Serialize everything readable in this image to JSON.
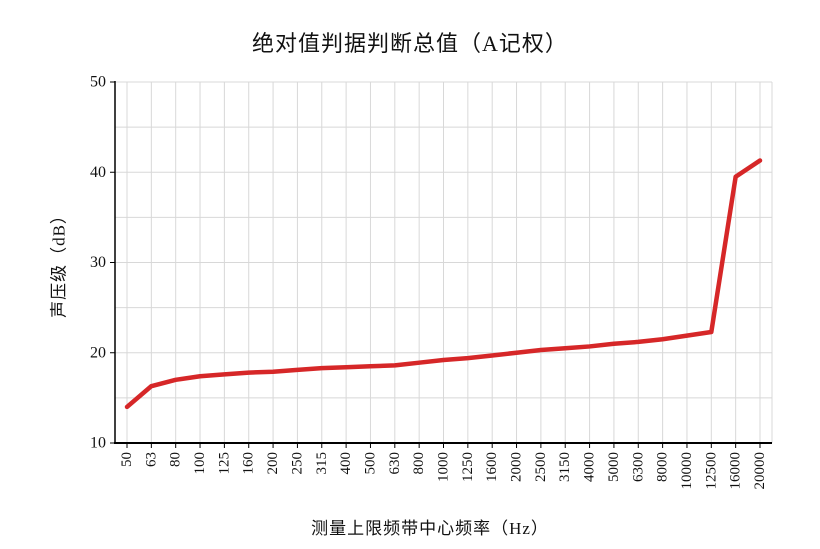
{
  "chart_data": {
    "type": "line",
    "title": "绝对值判据判断总值（A记权）",
    "xlabel": "测量上限频带中心频率（Hz）",
    "ylabel": "声压级（dB）",
    "categories": [
      "50",
      "63",
      "80",
      "100",
      "125",
      "160",
      "200",
      "250",
      "315",
      "400",
      "500",
      "630",
      "800",
      "1000",
      "1250",
      "1600",
      "2000",
      "2500",
      "3150",
      "4000",
      "5000",
      "6300",
      "8000",
      "10000",
      "12500",
      "16000",
      "20000"
    ],
    "values": [
      14.0,
      16.3,
      17.0,
      17.4,
      17.6,
      17.8,
      17.9,
      18.1,
      18.3,
      18.4,
      18.5,
      18.6,
      18.9,
      19.2,
      19.4,
      19.7,
      20.0,
      20.3,
      20.5,
      20.7,
      21.0,
      21.2,
      21.5,
      21.9,
      22.3,
      39.5,
      41.3
    ],
    "ylim": [
      10,
      50
    ],
    "y_major_tick_step": 10,
    "y_grid_step": 5,
    "y_tick_labels": [
      "10",
      "20",
      "30",
      "40",
      "50"
    ],
    "grid": true,
    "legend_position": "none",
    "line_color": "#d62728",
    "grid_color": "#d8d8d8",
    "axis_color": "#000000",
    "text_color": "#111111"
  }
}
